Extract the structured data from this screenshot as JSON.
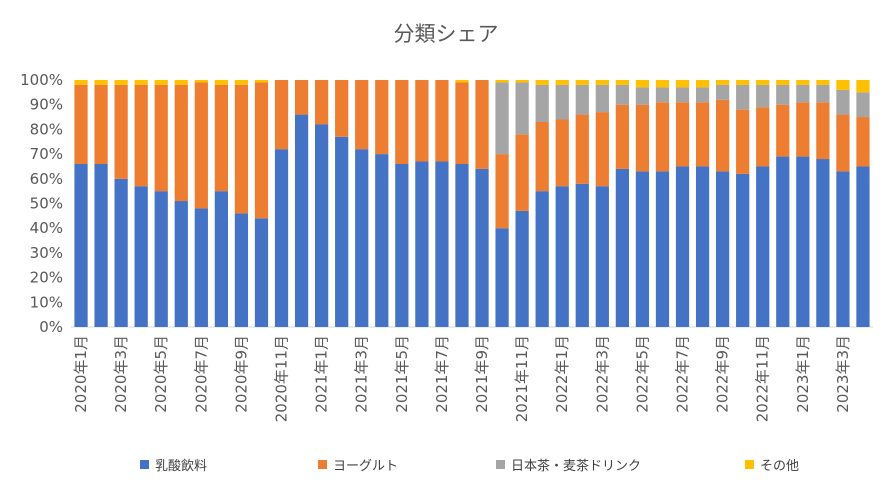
{
  "chart_data": {
    "type": "bar",
    "stacked": true,
    "percent": true,
    "title": "分類シェア",
    "xlabel": "",
    "ylabel": "",
    "ylim": [
      0,
      100
    ],
    "y_ticks": [
      "0%",
      "10%",
      "20%",
      "30%",
      "40%",
      "50%",
      "60%",
      "70%",
      "80%",
      "90%",
      "100%"
    ],
    "grid": false,
    "legend_position": "bottom",
    "categories": [
      "2020年1月",
      "2020年2月",
      "2020年3月",
      "2020年4月",
      "2020年5月",
      "2020年6月",
      "2020年7月",
      "2020年8月",
      "2020年9月",
      "2020年10月",
      "2020年11月",
      "2020年12月",
      "2021年1月",
      "2021年2月",
      "2021年3月",
      "2021年4月",
      "2021年5月",
      "2021年6月",
      "2021年7月",
      "2021年8月",
      "2021年9月",
      "2021年10月",
      "2021年11月",
      "2021年12月",
      "2022年1月",
      "2022年2月",
      "2022年3月",
      "2022年4月",
      "2022年5月",
      "2022年6月",
      "2022年7月",
      "2022年8月",
      "2022年9月",
      "2022年10月",
      "2022年11月",
      "2022年12月",
      "2023年1月",
      "2023年2月",
      "2023年3月",
      "2023年4月"
    ],
    "series": [
      {
        "name": "乳酸飲料",
        "color": "#4472C4",
        "values": [
          66,
          66,
          60,
          57,
          55,
          51,
          48,
          55,
          46,
          44,
          72,
          86,
          82,
          77,
          72,
          70,
          66,
          67,
          67,
          66,
          64,
          40,
          47,
          55,
          57,
          58,
          57,
          64,
          63,
          63,
          65,
          65,
          63,
          62,
          65,
          69,
          69,
          68,
          63,
          65
        ]
      },
      {
        "name": "ヨーグルト",
        "color": "#ED7D31",
        "values": [
          32,
          32,
          38,
          41,
          43,
          47,
          51,
          43,
          52,
          55,
          28,
          14,
          18,
          23,
          28,
          30,
          34,
          33,
          33,
          33,
          36,
          30,
          31,
          28,
          27,
          28,
          30,
          26,
          27,
          28,
          26,
          26,
          29,
          26,
          24,
          21,
          22,
          23,
          23,
          20
        ]
      },
      {
        "name": "日本茶・麦茶ドリンク",
        "color": "#A5A5A5",
        "values": [
          0,
          0,
          0,
          0,
          0,
          0,
          0,
          0,
          0,
          0,
          0,
          0,
          0,
          0,
          0,
          0,
          0,
          0,
          0,
          0,
          0,
          29,
          21,
          15,
          14,
          12,
          11,
          8,
          7,
          6,
          6,
          6,
          6,
          10,
          9,
          8,
          7,
          7,
          10,
          10
        ]
      },
      {
        "name": "その他",
        "color": "#FFC000",
        "values": [
          2,
          2,
          2,
          2,
          2,
          2,
          1,
          2,
          2,
          1,
          0,
          0,
          0,
          0,
          0,
          0,
          0,
          0,
          0,
          1,
          0,
          1,
          1,
          2,
          2,
          2,
          2,
          2,
          3,
          3,
          3,
          3,
          2,
          2,
          2,
          2,
          2,
          2,
          4,
          5
        ]
      }
    ],
    "x_tick_labels": [
      "2020年1月",
      "2020年3月",
      "2020年5月",
      "2020年7月",
      "2020年9月",
      "2020年11月",
      "2021年1月",
      "2021年3月",
      "2021年5月",
      "2021年7月",
      "2021年9月",
      "2021年11月",
      "2022年1月",
      "2022年3月",
      "2022年5月",
      "2022年7月",
      "2022年9月",
      "2022年11月",
      "2023年1月",
      "2023年3月"
    ]
  }
}
